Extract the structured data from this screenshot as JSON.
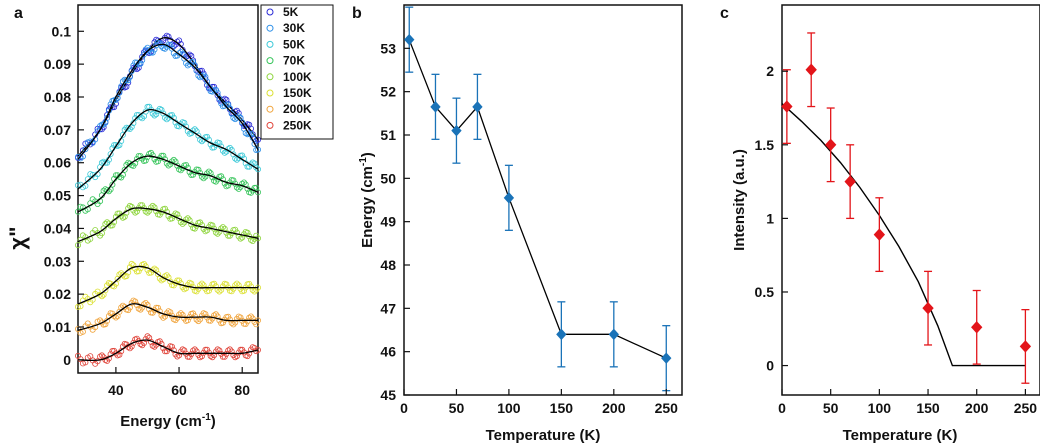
{
  "figure": {
    "panels": [
      {
        "letter": "a"
      },
      {
        "letter": "b"
      },
      {
        "letter": "c"
      }
    ]
  },
  "colors": {
    "axis": "#111111",
    "fit_line": "#000000",
    "panel_b_marker": "#1a73b8",
    "panel_c_marker": "#e3151a"
  },
  "chart_data": [
    {
      "type": "scatter",
      "panel": "a",
      "xlabel": "Energy (cm-1)",
      "xlabel_main": "Energy (cm",
      "xlabel_sup": "-1",
      "xlabel_end": ")",
      "ylabel": "χ\"",
      "xlim": [
        28,
        85
      ],
      "ylim": [
        -0.004,
        0.108
      ],
      "xticks": [
        40,
        60,
        80
      ],
      "yticks": [
        0,
        0.01,
        0.02,
        0.03,
        0.04,
        0.05,
        0.06,
        0.07,
        0.08,
        0.09,
        0.1
      ],
      "ytick_labels": [
        "0",
        "0.01",
        "0.02",
        "0.03",
        "0.04",
        "0.05",
        "0.06",
        "0.07",
        "0.08",
        "0.09",
        "0.1"
      ],
      "legend_position": "top-right",
      "series": [
        {
          "name": "5K",
          "color": "#2b2bd6",
          "x": [
            28,
            35,
            40,
            45,
            50,
            55,
            60,
            65,
            70,
            75,
            80,
            85
          ],
          "y": [
            0.062,
            0.07,
            0.079,
            0.087,
            0.094,
            0.098,
            0.096,
            0.09,
            0.083,
            0.078,
            0.073,
            0.067
          ]
        },
        {
          "name": "30K",
          "color": "#2a8ee8",
          "x": [
            28,
            35,
            40,
            45,
            50,
            55,
            60,
            65,
            70,
            75,
            80,
            85
          ],
          "y": [
            0.061,
            0.07,
            0.08,
            0.088,
            0.094,
            0.096,
            0.093,
            0.089,
            0.083,
            0.077,
            0.072,
            0.064
          ]
        },
        {
          "name": "50K",
          "color": "#3cc9d8",
          "x": [
            28,
            35,
            40,
            45,
            50,
            55,
            60,
            65,
            70,
            75,
            80,
            85
          ],
          "y": [
            0.052,
            0.058,
            0.065,
            0.072,
            0.076,
            0.075,
            0.072,
            0.069,
            0.066,
            0.064,
            0.061,
            0.058
          ]
        },
        {
          "name": "70K",
          "color": "#36c45a",
          "x": [
            28,
            35,
            40,
            45,
            50,
            55,
            60,
            65,
            70,
            75,
            80,
            85
          ],
          "y": [
            0.045,
            0.049,
            0.055,
            0.06,
            0.062,
            0.061,
            0.059,
            0.057,
            0.056,
            0.054,
            0.053,
            0.051
          ]
        },
        {
          "name": "100K",
          "color": "#8cd43a",
          "x": [
            28,
            35,
            40,
            45,
            50,
            55,
            60,
            65,
            70,
            75,
            80,
            85
          ],
          "y": [
            0.036,
            0.039,
            0.043,
            0.046,
            0.046,
            0.045,
            0.043,
            0.041,
            0.04,
            0.039,
            0.038,
            0.037
          ]
        },
        {
          "name": "150K",
          "color": "#dbe032",
          "x": [
            28,
            35,
            40,
            45,
            50,
            55,
            60,
            65,
            70,
            75,
            80,
            85
          ],
          "y": [
            0.017,
            0.02,
            0.024,
            0.028,
            0.028,
            0.025,
            0.023,
            0.022,
            0.022,
            0.022,
            0.022,
            0.022
          ]
        },
        {
          "name": "200K",
          "color": "#f0a33a",
          "x": [
            28,
            35,
            40,
            45,
            50,
            55,
            60,
            65,
            70,
            75,
            80,
            85
          ],
          "y": [
            0.009,
            0.011,
            0.014,
            0.017,
            0.016,
            0.014,
            0.013,
            0.013,
            0.013,
            0.012,
            0.012,
            0.012
          ]
        },
        {
          "name": "250K",
          "color": "#e0443a",
          "x": [
            28,
            35,
            40,
            45,
            50,
            55,
            60,
            65,
            70,
            75,
            80,
            85
          ],
          "y": [
            0.0,
            0.0,
            0.002,
            0.005,
            0.006,
            0.004,
            0.002,
            0.002,
            0.002,
            0.002,
            0.002,
            0.003
          ]
        }
      ]
    },
    {
      "type": "line",
      "panel": "b",
      "xlabel": "Temperature (K)",
      "ylabel": "Energy (cm-1)",
      "ylabel_main": "Energy (cm",
      "ylabel_sup": "-1",
      "ylabel_end": ")",
      "xlim": [
        0,
        265
      ],
      "ylim": [
        45,
        54
      ],
      "xticks": [
        0,
        50,
        100,
        150,
        200,
        250
      ],
      "yticks": [
        45,
        46,
        47,
        48,
        49,
        50,
        51,
        52,
        53
      ],
      "x": [
        5,
        30,
        50,
        70,
        100,
        150,
        200,
        250
      ],
      "y": [
        53.2,
        51.65,
        51.1,
        51.65,
        49.55,
        46.4,
        46.4,
        45.85
      ],
      "error": [
        0.75,
        0.75,
        0.75,
        0.75,
        0.75,
        0.75,
        0.75,
        0.75
      ]
    },
    {
      "type": "scatter",
      "panel": "c",
      "xlabel": "Temperature (K)",
      "ylabel": "Intensity (a.u.)",
      "xlim": [
        0,
        265
      ],
      "ylim": [
        -0.2,
        2.45
      ],
      "xticks": [
        0,
        50,
        100,
        150,
        200,
        250
      ],
      "yticks": [
        0,
        0.5,
        1,
        1.5,
        2
      ],
      "ytick_labels": [
        "0",
        "0.5",
        "1",
        "1.5",
        "2"
      ],
      "x": [
        5,
        30,
        50,
        70,
        100,
        150,
        200,
        250
      ],
      "y": [
        1.76,
        2.01,
        1.5,
        1.25,
        0.89,
        0.39,
        0.26,
        0.13
      ],
      "error": [
        0.25,
        0.25,
        0.25,
        0.25,
        0.25,
        0.25,
        0.25,
        0.25
      ],
      "fit": {
        "x": [
          0,
          20,
          40,
          60,
          80,
          100,
          120,
          140,
          160,
          175,
          200,
          250
        ],
        "y": [
          1.78,
          1.66,
          1.53,
          1.38,
          1.21,
          1.02,
          0.81,
          0.57,
          0.27,
          0.0,
          0.0,
          0.0
        ]
      }
    }
  ]
}
